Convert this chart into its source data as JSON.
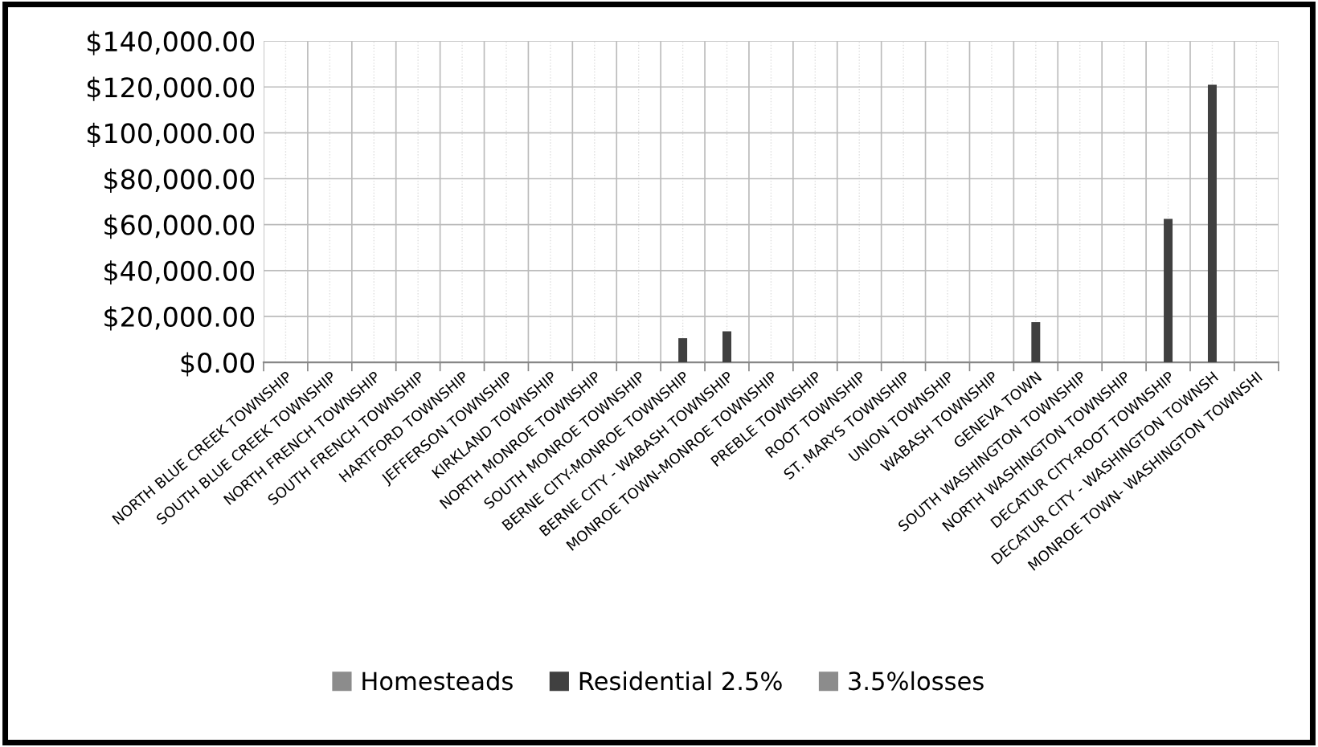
{
  "chart_data": {
    "type": "bar",
    "categories": [
      "NORTH BLUE CREEK TOWNSHIP",
      "SOUTH BLUE CREEK TOWNSHIP",
      "NORTH FRENCH TOWNSHIP",
      "SOUTH FRENCH TOWNSHIP",
      "HARTFORD TOWNSHIP",
      "JEFFERSON TOWNSHIP",
      "KIRKLAND TOWNSHIP",
      "NORTH MONROE TOWNSHIP",
      "SOUTH MONROE TOWNSHIP",
      "BERNE CITY-MONROE TOWNSHIP",
      "BERNE CITY - WABASH TOWNSHIP",
      "MONROE TOWN-MONROE TOWNSHIP",
      "PREBLE TOWNSHIP",
      "ROOT TOWNSHIP",
      "ST. MARYS TOWNSHIP",
      "UNION TOWNSHIP",
      "WABASH TOWNSHIP",
      "GENEVA TOWN",
      "SOUTH WASHINGTON TOWNSHIP",
      "NORTH WASHINGTON TOWNSHIP",
      "DECATUR CITY-ROOT TOWNSHIP",
      "DECATUR CITY - WASHINGTON TOWNSH",
      "MONROE TOWN- WASHINGTON TOWNSHI"
    ],
    "series": [
      {
        "name": "Homesteads",
        "color": "#8c8c8c",
        "values": [
          null,
          null,
          null,
          null,
          null,
          null,
          null,
          null,
          null,
          null,
          null,
          null,
          null,
          null,
          null,
          null,
          null,
          null,
          null,
          null,
          null,
          null,
          null
        ]
      },
      {
        "name": "Residential 2.5%",
        "color": "#404040",
        "values": [
          null,
          null,
          null,
          null,
          null,
          null,
          null,
          null,
          null,
          10500,
          13500,
          null,
          null,
          null,
          null,
          null,
          null,
          17500,
          null,
          null,
          62500,
          121000,
          null
        ]
      },
      {
        "name": "3.5%losses",
        "color": "#8c8c8c",
        "values": [
          null,
          null,
          null,
          null,
          null,
          null,
          null,
          null,
          null,
          null,
          null,
          null,
          null,
          null,
          null,
          null,
          null,
          null,
          null,
          null,
          null,
          null,
          null
        ]
      }
    ],
    "ylim": [
      0,
      140000
    ],
    "yticks": [
      {
        "value": 0,
        "label": "$0.00"
      },
      {
        "value": 20000,
        "label": "$20,000.00"
      },
      {
        "value": 40000,
        "label": "$40,000.00"
      },
      {
        "value": 60000,
        "label": "$60,000.00"
      },
      {
        "value": 80000,
        "label": "$80,000.00"
      },
      {
        "value": 100000,
        "label": "$100,000.00"
      },
      {
        "value": 120000,
        "label": "$120,000.00"
      },
      {
        "value": 140000,
        "label": "$140,000.00"
      }
    ],
    "grid": true,
    "legend": "bottom"
  }
}
